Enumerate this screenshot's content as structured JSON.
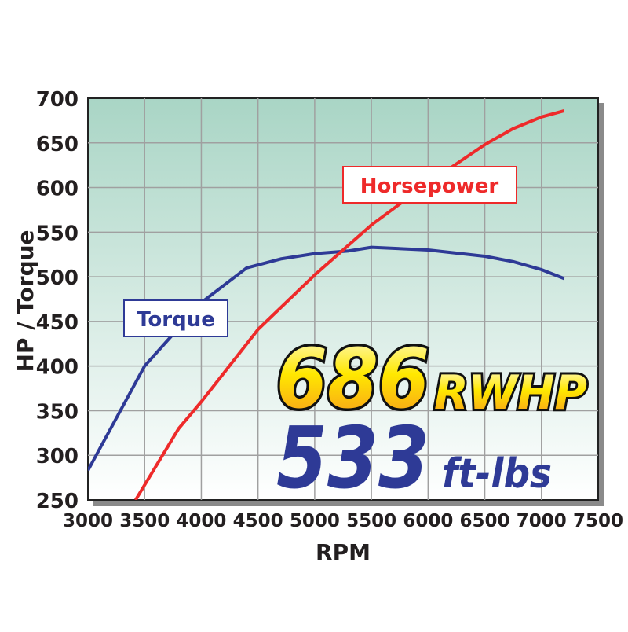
{
  "chart_data": {
    "type": "line",
    "title": "",
    "xlabel": "RPM",
    "ylabel": "HP / Torque",
    "xlim": [
      3000,
      7500
    ],
    "ylim": [
      250,
      700
    ],
    "x_ticks": [
      "3000",
      "3500",
      "4000",
      "4500",
      "5000",
      "5500",
      "6000",
      "6500",
      "7000",
      "7500"
    ],
    "y_ticks": [
      "250",
      "300",
      "350",
      "400",
      "450",
      "500",
      "550",
      "600",
      "650",
      "700"
    ],
    "grid": true,
    "series": [
      {
        "name": "Torque",
        "color": "#2e3a96",
        "x": [
          3000,
          3500,
          4000,
          4400,
          4700,
          5000,
          5300,
          5500,
          6000,
          6500,
          6750,
          7000,
          7200
        ],
        "y": [
          283,
          400,
          471,
          510,
          520,
          526,
          529,
          533,
          530,
          523,
          517,
          508,
          498
        ]
      },
      {
        "name": "Horsepower",
        "color": "#ee2a2a",
        "x": [
          3420,
          3800,
          4000,
          4500,
          5000,
          5500,
          6000,
          6500,
          6750,
          7000,
          7200
        ],
        "y": [
          250,
          330,
          360,
          441,
          502,
          558,
          605,
          648,
          666,
          679,
          686
        ]
      }
    ],
    "annotations": {
      "peak_hp_value": "686",
      "peak_hp_unit": "RWHP",
      "peak_torque_value": "533",
      "peak_torque_unit": "ft-lbs"
    },
    "colors": {
      "background_top": "#a9d5c5",
      "background_bottom": "#ffffff",
      "grid": "#a0a0a0",
      "highlight_yellow": "#ffe800",
      "highlight_orange": "#f79a1e"
    }
  }
}
